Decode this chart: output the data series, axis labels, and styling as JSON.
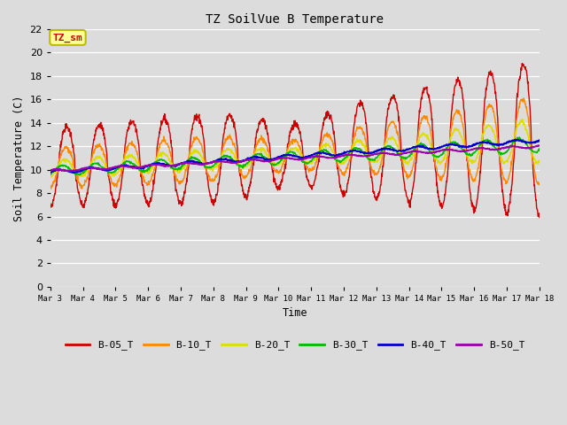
{
  "title": "TZ SoilVue B Temperature",
  "xlabel": "Time",
  "ylabel": "Soil Temperature (C)",
  "annotation": "TZ_sm",
  "ylim": [
    0,
    22
  ],
  "yticks": [
    0,
    2,
    4,
    6,
    8,
    10,
    12,
    14,
    16,
    18,
    20,
    22
  ],
  "bg_color": "#dcdcdc",
  "xtick_positions": [
    0,
    1,
    2,
    3,
    4,
    5,
    6,
    7,
    8,
    9,
    10,
    11,
    12,
    13,
    14,
    15
  ],
  "xtick_labels": [
    "Mar 3",
    "Mar 4",
    "Mar 5",
    "Mar 6",
    "Mar 7",
    "Mar 8",
    "Mar 9",
    "Mar 10",
    "Mar 11",
    "Mar 12",
    "Mar 13",
    "Mar 14",
    "Mar 15",
    "Mar 16",
    "Mar 17",
    "Mar 18"
  ],
  "colors": {
    "B-05_T": "#cc0000",
    "B-10_T": "#ff8800",
    "B-20_T": "#dddd00",
    "B-30_T": "#00bb00",
    "B-40_T": "#0000cc",
    "B-50_T": "#9900aa"
  },
  "font_family": "monospace"
}
